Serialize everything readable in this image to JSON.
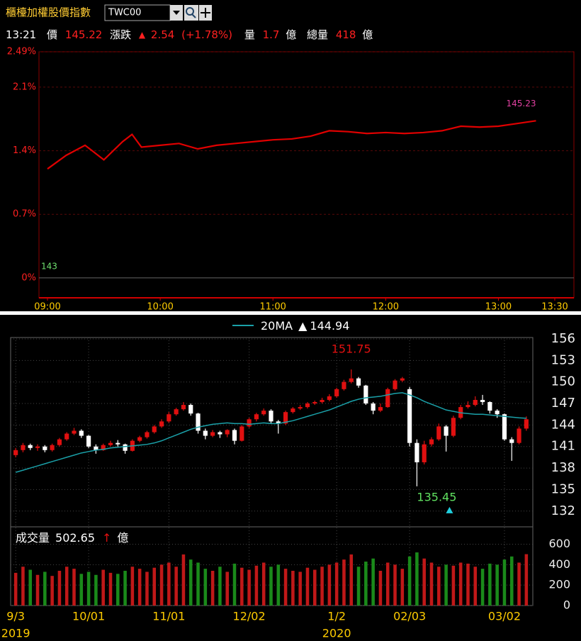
{
  "header": {
    "title": "櫃檯加權股價指數",
    "code": "TWC00",
    "time": "13:21",
    "price_label": "價",
    "price": 145.22,
    "change_label": "漲跌",
    "change_arrow": "▲",
    "change": 2.54,
    "change_pct": "(+1.78%)",
    "vol_label": "量",
    "vol": 1.7,
    "unit": "億",
    "total_label": "總量",
    "total": 418
  },
  "chart_data": [
    {
      "type": "line",
      "xlim": [
        "09:00",
        "13:30"
      ],
      "xticks": [
        "09:00",
        "10:00",
        "11:00",
        "12:00",
        "13:00",
        "13:30"
      ],
      "ylim": [
        -0.22,
        2.49
      ],
      "yticks": [
        {
          "value": 2.49,
          "label": "2.49%"
        },
        {
          "value": 2.1,
          "label": "2.1%"
        },
        {
          "value": 1.4,
          "label": "1.4%"
        },
        {
          "value": 0.7,
          "label": "0.7%"
        },
        {
          "value": 0,
          "label": "0%"
        }
      ],
      "grid": true,
      "x": [
        "09:00",
        "09:10",
        "09:20",
        "09:30",
        "09:40",
        "09:45",
        "09:50",
        "10:00",
        "10:10",
        "10:20",
        "10:30",
        "10:40",
        "10:50",
        "11:00",
        "11:10",
        "11:20",
        "11:30",
        "11:40",
        "11:50",
        "12:00",
        "12:10",
        "12:20",
        "12:30",
        "12:40",
        "12:50",
        "13:00",
        "13:10",
        "13:20"
      ],
      "series": [
        {
          "color": "#e00000",
          "values": [
            1.2,
            1.35,
            1.46,
            1.3,
            1.5,
            1.58,
            1.44,
            1.46,
            1.48,
            1.42,
            1.46,
            1.48,
            1.5,
            1.52,
            1.53,
            1.56,
            1.62,
            1.61,
            1.59,
            1.6,
            1.59,
            1.6,
            1.62,
            1.67,
            1.66,
            1.67,
            1.7,
            1.73
          ]
        }
      ],
      "last_price": 145.23,
      "last_color": "#e040a0",
      "ref_price": 143,
      "ref_color": "#6ee06e"
    },
    {
      "type": "candlestick",
      "categories": [
        "9/3",
        null,
        null,
        null,
        null,
        null,
        null,
        null,
        null,
        null,
        "10/01",
        null,
        null,
        null,
        null,
        null,
        null,
        null,
        null,
        null,
        null,
        "11/01",
        null,
        null,
        null,
        null,
        null,
        null,
        null,
        null,
        null,
        null,
        "12/02",
        null,
        null,
        null,
        null,
        null,
        null,
        null,
        null,
        null,
        null,
        null,
        "1/2",
        null,
        null,
        null,
        null,
        null,
        null,
        null,
        null,
        null,
        "02/03",
        null,
        null,
        null,
        null,
        null,
        null,
        null,
        null,
        null,
        null,
        null,
        null,
        "03/02",
        null,
        null,
        null
      ],
      "years": [
        "2019",
        null,
        null,
        null,
        null,
        null,
        null,
        null,
        null,
        null,
        null,
        null,
        null,
        null,
        null,
        null,
        null,
        null,
        null,
        null,
        null,
        null,
        null,
        null,
        null,
        null,
        null,
        null,
        null,
        null,
        null,
        null,
        null,
        null,
        null,
        null,
        null,
        null,
        null,
        null,
        null,
        null,
        null,
        null,
        "2020",
        null,
        null,
        null,
        null,
        null,
        null,
        null,
        null,
        null,
        null,
        null,
        null,
        null,
        null,
        null,
        null,
        null,
        null,
        null,
        null,
        null,
        null,
        null,
        null,
        null,
        null
      ],
      "ylim": [
        129.8,
        156.2
      ],
      "yticks": [
        132,
        135,
        138,
        141,
        144,
        147,
        150,
        153,
        156
      ],
      "grid": true,
      "up_color": "#e01010",
      "down_color": "#ffffff",
      "candles": {
        "open": [
          139.8,
          140.5,
          141.2,
          140.8,
          141.0,
          140.5,
          141.2,
          142.0,
          142.8,
          143.2,
          142.5,
          141.0,
          140.5,
          141.2,
          141.5,
          141.3,
          140.4,
          141.8,
          142.3,
          143.0,
          143.8,
          144.5,
          145.5,
          146.2,
          146.8,
          145.6,
          143.2,
          142.5,
          143.0,
          142.7,
          143.3,
          141.8,
          143.8,
          144.8,
          145.5,
          146.0,
          144.5,
          144.2,
          145.8,
          146.3,
          146.5,
          147.0,
          147.2,
          147.5,
          148.0,
          149.0,
          150.0,
          150.5,
          149.5,
          147.0,
          146.0,
          146.5,
          149.0,
          150.2,
          149.0,
          141.5,
          138.8,
          141.3,
          142.0,
          143.8,
          142.5,
          145.0,
          146.5,
          146.8,
          147.5,
          147.2,
          146.0,
          145.5,
          142.0,
          141.5,
          143.5
        ],
        "high": [
          140.8,
          141.5,
          141.4,
          141.3,
          141.2,
          141.4,
          142.2,
          143.0,
          143.6,
          143.4,
          142.6,
          141.3,
          141.4,
          141.8,
          141.9,
          141.4,
          142.0,
          142.5,
          143.2,
          144.0,
          144.8,
          145.8,
          146.4,
          147.2,
          147.0,
          145.7,
          143.5,
          143.3,
          143.2,
          143.4,
          143.5,
          144.0,
          145.0,
          145.7,
          146.3,
          146.2,
          144.7,
          146.0,
          146.5,
          146.8,
          147.2,
          147.4,
          147.8,
          148.3,
          149.2,
          150.3,
          151.75,
          150.7,
          149.6,
          147.2,
          147.0,
          149.2,
          150.4,
          150.7,
          149.3,
          142.0,
          141.8,
          142.3,
          144.2,
          144.0,
          145.3,
          146.8,
          147.3,
          148.0,
          148.2,
          147.3,
          146.2,
          145.6,
          142.3,
          143.8,
          145.2
        ],
        "low": [
          139.5,
          140.2,
          140.5,
          140.4,
          140.2,
          140.3,
          141.0,
          141.8,
          142.6,
          142.2,
          140.8,
          140.0,
          140.4,
          141.0,
          141.0,
          140.0,
          140.3,
          141.6,
          142.1,
          142.8,
          143.6,
          144.3,
          145.3,
          146.0,
          145.3,
          142.8,
          142.0,
          142.3,
          142.2,
          142.3,
          141.3,
          141.7,
          143.6,
          144.5,
          145.3,
          144.2,
          142.8,
          144.0,
          145.6,
          146.1,
          146.3,
          146.8,
          147.0,
          147.3,
          147.8,
          148.8,
          149.8,
          149.2,
          146.8,
          145.5,
          145.8,
          146.4,
          148.8,
          150.0,
          141.0,
          135.45,
          138.5,
          141.0,
          141.8,
          140.3,
          142.3,
          144.8,
          146.3,
          146.6,
          146.8,
          145.6,
          145.0,
          141.8,
          139.0,
          141.3,
          143.2
        ],
        "close": [
          140.5,
          141.2,
          140.8,
          141.0,
          140.5,
          141.2,
          142.0,
          142.8,
          143.2,
          142.5,
          141.0,
          140.5,
          141.2,
          141.5,
          141.3,
          140.4,
          141.8,
          142.3,
          143.0,
          143.8,
          144.5,
          145.5,
          146.2,
          146.8,
          145.6,
          143.2,
          142.5,
          143.0,
          142.7,
          143.3,
          141.8,
          143.8,
          144.8,
          145.5,
          146.0,
          144.5,
          144.2,
          145.8,
          146.3,
          146.5,
          147.0,
          147.2,
          147.5,
          148.0,
          149.0,
          150.0,
          150.5,
          149.5,
          147.0,
          146.0,
          146.5,
          149.0,
          150.2,
          150.5,
          141.5,
          138.8,
          141.3,
          142.0,
          143.8,
          142.5,
          145.0,
          146.5,
          146.8,
          147.5,
          147.2,
          146.0,
          145.5,
          142.0,
          141.5,
          143.5,
          144.8
        ]
      },
      "ma": {
        "name": "20MA",
        "arrow": "▲",
        "color": "#1aa0a8",
        "values": [
          137.4,
          137.7,
          138.0,
          138.3,
          138.6,
          138.9,
          139.2,
          139.5,
          139.8,
          140.1,
          140.3,
          140.5,
          140.6,
          140.8,
          140.9,
          141.0,
          141.1,
          141.2,
          141.3,
          141.5,
          141.8,
          142.2,
          142.6,
          143.0,
          143.4,
          143.7,
          143.9,
          144.1,
          144.2,
          144.3,
          144.2,
          144.2,
          144.1,
          144.2,
          144.3,
          144.2,
          144.2,
          144.4,
          144.6,
          144.9,
          145.2,
          145.5,
          145.8,
          146.1,
          146.5,
          146.9,
          147.3,
          147.6,
          147.8,
          147.9,
          148.0,
          148.2,
          148.4,
          148.5,
          148.2,
          147.8,
          147.3,
          146.9,
          146.5,
          146.1,
          145.9,
          145.7,
          145.6,
          145.5,
          145.5,
          145.4,
          145.3,
          145.2,
          145.1,
          145.0,
          144.94
        ]
      },
      "low_marker_color": "#20d0e0"
    },
    {
      "type": "bar",
      "title": "成交量",
      "arrow": "↑",
      "arrow_color": "#e01010",
      "unit": "億",
      "up_color": "#c01818",
      "down_color": "#1a8a1a",
      "ylim": [
        0,
        770
      ],
      "yticks": [
        0,
        200,
        400,
        600
      ],
      "grid": true,
      "values": [
        320,
        380,
        350,
        300,
        330,
        290,
        340,
        380,
        360,
        310,
        330,
        300,
        350,
        320,
        310,
        340,
        380,
        360,
        330,
        370,
        400,
        420,
        380,
        500,
        450,
        420,
        360,
        340,
        380,
        330,
        410,
        370,
        350,
        390,
        420,
        380,
        400,
        360,
        340,
        330,
        370,
        350,
        380,
        400,
        420,
        450,
        500,
        380,
        430,
        460,
        340,
        420,
        400,
        360,
        480,
        520,
        460,
        420,
        380,
        400,
        390,
        420,
        410,
        380,
        360,
        410,
        400,
        450,
        480,
        420,
        502.65
      ]
    }
  ]
}
